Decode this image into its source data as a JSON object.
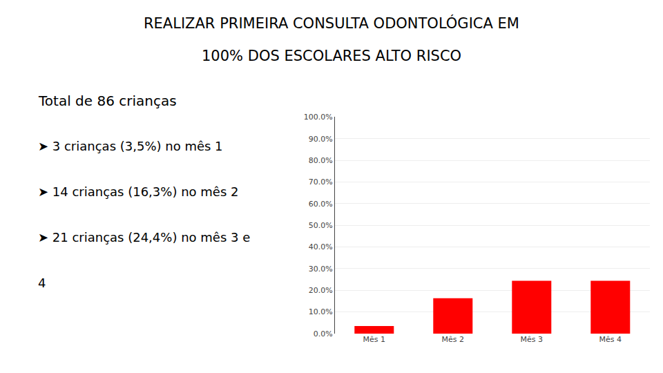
{
  "chart_data": {
    "type": "bar",
    "title": "REALIZAR PRIMEIRA CONSULTA ODONTOLÓGICA EM",
    "subtitle": "100% DOS ESCOLARES ALTO RISCO",
    "categories": [
      "Mês 1",
      "Mês 2",
      "Mês 3",
      "Mês 4"
    ],
    "values": [
      3.5,
      16.3,
      24.4,
      24.4
    ],
    "color": "#ff0000",
    "ylim": [
      0,
      100
    ],
    "yticks": [
      {
        "value": 0,
        "label": "0.0%"
      },
      {
        "value": 10,
        "label": "10.0%"
      },
      {
        "value": 20,
        "label": "20.0%"
      },
      {
        "value": 30,
        "label": "30.0%"
      },
      {
        "value": 40,
        "label": "40.0%"
      },
      {
        "value": 50,
        "label": "50.0%"
      },
      {
        "value": 60,
        "label": "60.0%"
      },
      {
        "value": 70,
        "label": "70.0%"
      },
      {
        "value": 80,
        "label": "80.0%"
      },
      {
        "value": 90,
        "label": "90.0%"
      },
      {
        "value": 100,
        "label": "100.0%"
      }
    ],
    "grid": true,
    "annotations": [
      "Total de 86 crianças",
      "➤ 3 crianças (3,5%) no mês 1",
      "➤ 14 crianças (16,3%) no mês 2",
      "➤ 21 crianças (24,4%) no mês 3 e",
      "4"
    ]
  }
}
